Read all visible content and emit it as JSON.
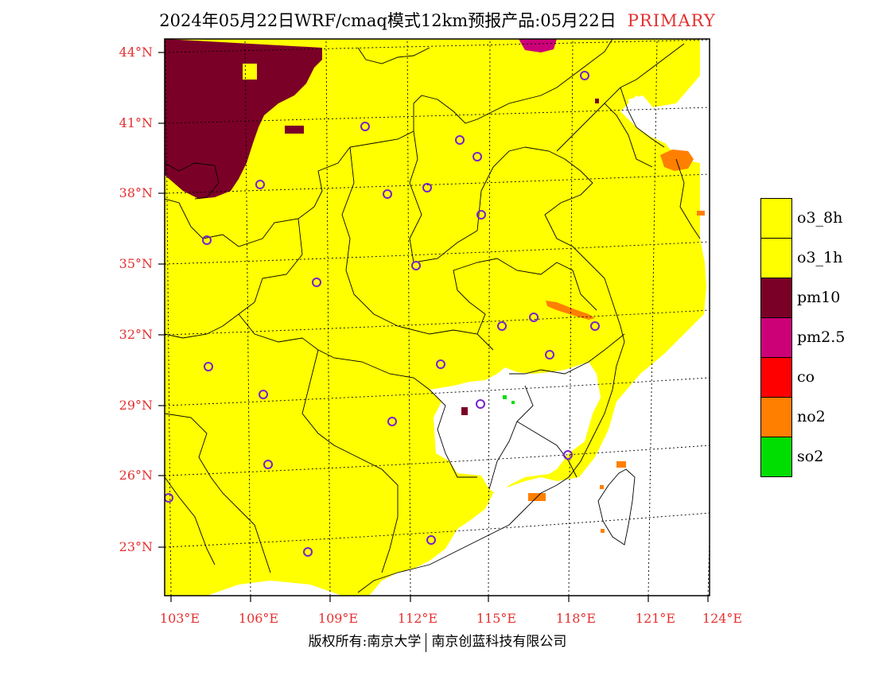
{
  "header": {
    "title": "2024年05月22日WRF/cmaq模式12km预报产品:05月22日",
    "tag": "PRIMARY"
  },
  "axes": {
    "lat_labels": [
      "44°N",
      "41°N",
      "38°N",
      "35°N",
      "32°N",
      "29°N",
      "26°N",
      "23°N"
    ],
    "lon_labels": [
      "103°E",
      "106°E",
      "109°E",
      "112°E",
      "115°E",
      "118°E",
      "121°E",
      "124°E"
    ]
  },
  "legend": {
    "items": [
      {
        "label": "o3_8h",
        "color": "#ffff00"
      },
      {
        "label": "o3_1h",
        "color": "#ffff00"
      },
      {
        "label": "pm10",
        "color": "#7b0028"
      },
      {
        "label": "pm2.5",
        "color": "#cc0077"
      },
      {
        "label": "co",
        "color": "#ff0000"
      },
      {
        "label": "no2",
        "color": "#ff7f00"
      },
      {
        "label": "so2",
        "color": "#00dd00"
      }
    ]
  },
  "footer": {
    "left": "版权所有:南京大学",
    "right": "南京创蓝科技有限公司"
  },
  "colors": {
    "o3": "#ffff00",
    "pm10": "#7b0028",
    "pm25": "#cc0077",
    "no2": "#ff7f00",
    "so2": "#00dd00",
    "station": "#7722cc",
    "axis_label": "#e53030"
  }
}
